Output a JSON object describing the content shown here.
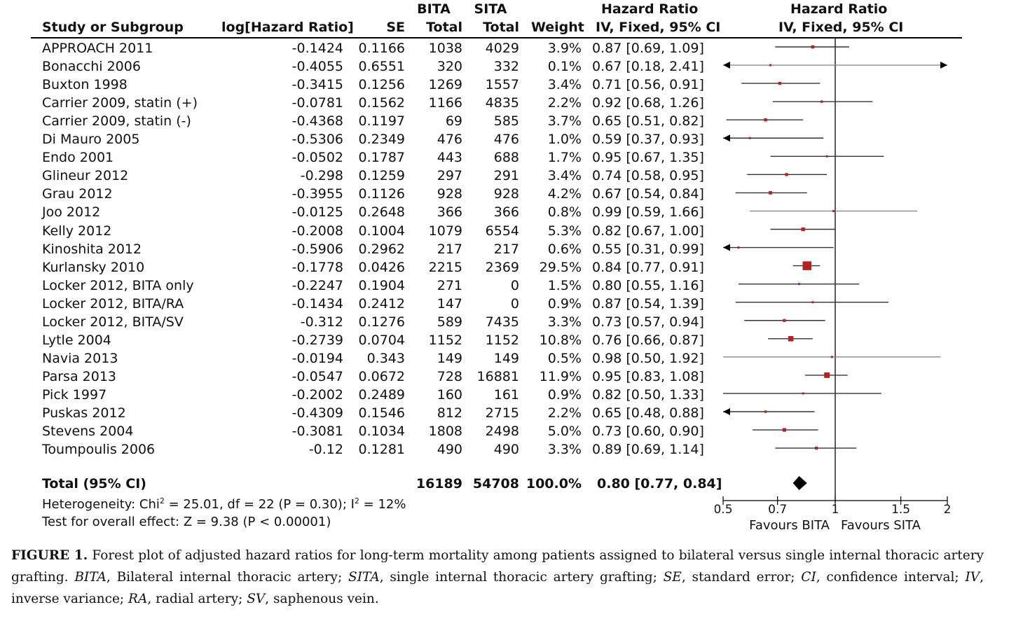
{
  "headers": {
    "study": "Study or Subgroup",
    "loghr": "log[Hazard Ratio]",
    "se": "SE",
    "bita_top": "BITA",
    "bita_bottom": "Total",
    "sita_top": "SITA",
    "sita_bottom": "Total",
    "weight": "Weight",
    "hr_top": "Hazard Ratio",
    "hr_bottom": "IV, Fixed, 95% CI",
    "plot_top": "Hazard Ratio",
    "plot_bottom": "IV, Fixed, 95% CI"
  },
  "rows": [
    {
      "study": "APPROACH 2011",
      "loghr": "-0.1424",
      "se": "0.1166",
      "bita": "1038",
      "sita": "4029",
      "weight": "3.9%",
      "ci": "0.87 [0.69, 1.09]"
    },
    {
      "study": "Bonacchi 2006",
      "loghr": "-0.4055",
      "se": "0.6551",
      "bita": "320",
      "sita": "332",
      "weight": "0.1%",
      "ci": "0.67 [0.18, 2.41]"
    },
    {
      "study": "Buxton 1998",
      "loghr": "-0.3415",
      "se": "0.1256",
      "bita": "1269",
      "sita": "1557",
      "weight": "3.4%",
      "ci": "0.71 [0.56, 0.91]"
    },
    {
      "study": "Carrier 2009, statin (+)",
      "loghr": "-0.0781",
      "se": "0.1562",
      "bita": "1166",
      "sita": "4835",
      "weight": "2.2%",
      "ci": "0.92 [0.68, 1.26]"
    },
    {
      "study": "Carrier 2009, statin (-)",
      "loghr": "-0.4368",
      "se": "0.1197",
      "bita": "69",
      "sita": "585",
      "weight": "3.7%",
      "ci": "0.65 [0.51, 0.82]"
    },
    {
      "study": "Di Mauro 2005",
      "loghr": "-0.5306",
      "se": "0.2349",
      "bita": "476",
      "sita": "476",
      "weight": "1.0%",
      "ci": "0.59 [0.37, 0.93]"
    },
    {
      "study": "Endo 2001",
      "loghr": "-0.0502",
      "se": "0.1787",
      "bita": "443",
      "sita": "688",
      "weight": "1.7%",
      "ci": "0.95 [0.67, 1.35]"
    },
    {
      "study": "Glineur 2012",
      "loghr": "-0.298",
      "se": "0.1259",
      "bita": "297",
      "sita": "291",
      "weight": "3.4%",
      "ci": "0.74 [0.58, 0.95]"
    },
    {
      "study": "Grau 2012",
      "loghr": "-0.3955",
      "se": "0.1126",
      "bita": "928",
      "sita": "928",
      "weight": "4.2%",
      "ci": "0.67 [0.54, 0.84]"
    },
    {
      "study": "Joo 2012",
      "loghr": "-0.0125",
      "se": "0.2648",
      "bita": "366",
      "sita": "366",
      "weight": "0.8%",
      "ci": "0.99 [0.59, 1.66]"
    },
    {
      "study": "Kelly 2012",
      "loghr": "-0.2008",
      "se": "0.1004",
      "bita": "1079",
      "sita": "6554",
      "weight": "5.3%",
      "ci": "0.82 [0.67, 1.00]"
    },
    {
      "study": "Kinoshita 2012",
      "loghr": "-0.5906",
      "se": "0.2962",
      "bita": "217",
      "sita": "217",
      "weight": "0.6%",
      "ci": "0.55 [0.31, 0.99]"
    },
    {
      "study": "Kurlansky 2010",
      "loghr": "-0.1778",
      "se": "0.0426",
      "bita": "2215",
      "sita": "2369",
      "weight": "29.5%",
      "ci": "0.84 [0.77, 0.91]"
    },
    {
      "study": "Locker 2012, BITA only",
      "loghr": "-0.2247",
      "se": "0.1904",
      "bita": "271",
      "sita": "0",
      "weight": "1.5%",
      "ci": "0.80 [0.55, 1.16]"
    },
    {
      "study": "Locker 2012, BITA/RA",
      "loghr": "-0.1434",
      "se": "0.2412",
      "bita": "147",
      "sita": "0",
      "weight": "0.9%",
      "ci": "0.87 [0.54, 1.39]"
    },
    {
      "study": "Locker 2012, BITA/SV",
      "loghr": "-0.312",
      "se": "0.1276",
      "bita": "589",
      "sita": "7435",
      "weight": "3.3%",
      "ci": "0.73 [0.57, 0.94]"
    },
    {
      "study": "Lytle 2004",
      "loghr": "-0.2739",
      "se": "0.0704",
      "bita": "1152",
      "sita": "1152",
      "weight": "10.8%",
      "ci": "0.76 [0.66, 0.87]"
    },
    {
      "study": "Navia 2013",
      "loghr": "-0.0194",
      "se": "0.343",
      "bita": "149",
      "sita": "149",
      "weight": "0.5%",
      "ci": "0.98 [0.50, 1.92]"
    },
    {
      "study": "Parsa 2013",
      "loghr": "-0.0547",
      "se": "0.0672",
      "bita": "728",
      "sita": "16881",
      "weight": "11.9%",
      "ci": "0.95 [0.83, 1.08]"
    },
    {
      "study": "Pick 1997",
      "loghr": "-0.2002",
      "se": "0.2489",
      "bita": "160",
      "sita": "161",
      "weight": "0.9%",
      "ci": "0.82 [0.50, 1.33]"
    },
    {
      "study": "Puskas 2012",
      "loghr": "-0.4309",
      "se": "0.1546",
      "bita": "812",
      "sita": "2715",
      "weight": "2.2%",
      "ci": "0.65 [0.48, 0.88]"
    },
    {
      "study": "Stevens 2004",
      "loghr": "-0.3081",
      "se": "0.1034",
      "bita": "1808",
      "sita": "2498",
      "weight": "5.0%",
      "ci": "0.73 [0.60, 0.90]"
    },
    {
      "study": "Toumpoulis 2006",
      "loghr": "-0.12",
      "se": "0.1281",
      "bita": "490",
      "sita": "490",
      "weight": "3.3%",
      "ci": "0.89 [0.69, 1.14]"
    }
  ],
  "total": {
    "label": "Total (95% CI)",
    "bita": "16189",
    "sita": "54708",
    "weight": "100.0%",
    "ci": "0.80 [0.77, 0.84]"
  },
  "heterogeneity_prefix": "Heterogeneity: Chi",
  "heterogeneity_sup": "2",
  "heterogeneity_mid": " = 25.01, df = 22 (P = 0.30); I",
  "heterogeneity_sup2": "2",
  "heterogeneity_end": " = 12%",
  "overall_effect": "Test for overall effect: Z = 9.38 (P < 0.00001)",
  "caption": {
    "label": "FIGURE 1.",
    "text1": " Forest plot of adjusted hazard ratios for long-term mortality among patients assigned to bilateral versus single internal thoracic artery grafting. ",
    "abbr1": "BITA",
    "text2": ", Bilateral internal thoracic artery; ",
    "abbr2": "SITA",
    "text3": ", single internal thoracic artery grafting; ",
    "abbr3": "SE",
    "text4": ", standard error; ",
    "abbr4": "CI",
    "text5": ", confidence interval; ",
    "abbr5": "IV",
    "text6": ", inverse variance; ",
    "abbr6": "RA",
    "text7": ", radial artery; ",
    "abbr7": "SV",
    "text8": ", saphenous vein."
  },
  "chart_data": {
    "type": "scatter",
    "scale": "log",
    "xlim": [
      0.5,
      2
    ],
    "ticks": [
      "0.5",
      "0.7",
      "1",
      "1.5",
      "2"
    ],
    "tick_values": [
      0.5,
      0.7,
      1,
      1.5,
      2
    ],
    "null_value": 1,
    "favours_left": "Favours BITA",
    "favours_right": "Favours SITA",
    "marker_color": "#b22222",
    "line_color": "#333333",
    "points": [
      {
        "hr": 0.87,
        "lo": 0.69,
        "hi": 1.09,
        "w": 3.9
      },
      {
        "hr": 0.67,
        "lo": 0.18,
        "hi": 2.41,
        "w": 0.1
      },
      {
        "hr": 0.71,
        "lo": 0.56,
        "hi": 0.91,
        "w": 3.4
      },
      {
        "hr": 0.92,
        "lo": 0.68,
        "hi": 1.26,
        "w": 2.2
      },
      {
        "hr": 0.65,
        "lo": 0.51,
        "hi": 0.82,
        "w": 3.7
      },
      {
        "hr": 0.59,
        "lo": 0.37,
        "hi": 0.93,
        "w": 1.0
      },
      {
        "hr": 0.95,
        "lo": 0.67,
        "hi": 1.35,
        "w": 1.7
      },
      {
        "hr": 0.74,
        "lo": 0.58,
        "hi": 0.95,
        "w": 3.4
      },
      {
        "hr": 0.67,
        "lo": 0.54,
        "hi": 0.84,
        "w": 4.2
      },
      {
        "hr": 0.99,
        "lo": 0.59,
        "hi": 1.66,
        "w": 0.8
      },
      {
        "hr": 0.82,
        "lo": 0.67,
        "hi": 1.0,
        "w": 5.3
      },
      {
        "hr": 0.55,
        "lo": 0.31,
        "hi": 0.99,
        "w": 0.6
      },
      {
        "hr": 0.84,
        "lo": 0.77,
        "hi": 0.91,
        "w": 29.5
      },
      {
        "hr": 0.8,
        "lo": 0.55,
        "hi": 1.16,
        "w": 1.5
      },
      {
        "hr": 0.87,
        "lo": 0.54,
        "hi": 1.39,
        "w": 0.9
      },
      {
        "hr": 0.73,
        "lo": 0.57,
        "hi": 0.94,
        "w": 3.3
      },
      {
        "hr": 0.76,
        "lo": 0.66,
        "hi": 0.87,
        "w": 10.8
      },
      {
        "hr": 0.98,
        "lo": 0.5,
        "hi": 1.92,
        "w": 0.5
      },
      {
        "hr": 0.95,
        "lo": 0.83,
        "hi": 1.08,
        "w": 11.9
      },
      {
        "hr": 0.82,
        "lo": 0.5,
        "hi": 1.33,
        "w": 0.9
      },
      {
        "hr": 0.65,
        "lo": 0.48,
        "hi": 0.88,
        "w": 2.2
      },
      {
        "hr": 0.73,
        "lo": 0.6,
        "hi": 0.9,
        "w": 5.0
      },
      {
        "hr": 0.89,
        "lo": 0.69,
        "hi": 1.14,
        "w": 3.3
      }
    ],
    "pooled": {
      "hr": 0.8,
      "lo": 0.77,
      "hi": 0.84
    }
  }
}
